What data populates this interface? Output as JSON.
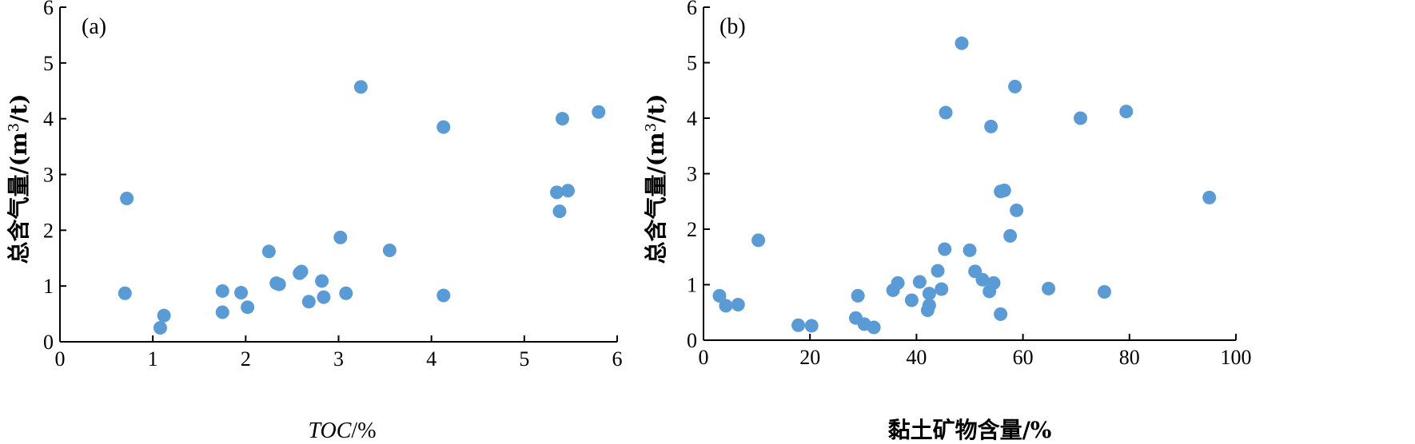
{
  "colors": {
    "point": "#5b9bd5"
  },
  "chart_data": [
    {
      "type": "scatter",
      "panel_label": "(a)",
      "xlabel_italic": "TOC",
      "xlabel_suffix": "/%",
      "ylabel_main": "总含气量/(m",
      "ylabel_sup": "3",
      "ylabel_end": "/t)",
      "xlim": [
        0,
        6
      ],
      "ylim": [
        0,
        6
      ],
      "xticks": [
        0,
        1,
        2,
        3,
        4,
        5,
        6
      ],
      "yticks": [
        0,
        1,
        2,
        3,
        4,
        5,
        6
      ],
      "points": [
        [
          0.72,
          2.57
        ],
        [
          0.7,
          0.87
        ],
        [
          1.08,
          0.25
        ],
        [
          1.12,
          0.47
        ],
        [
          1.75,
          0.91
        ],
        [
          1.75,
          0.53
        ],
        [
          1.95,
          0.88
        ],
        [
          2.02,
          0.62
        ],
        [
          2.25,
          1.62
        ],
        [
          2.33,
          1.05
        ],
        [
          2.36,
          1.03
        ],
        [
          2.58,
          1.23
        ],
        [
          2.6,
          1.26
        ],
        [
          2.68,
          0.72
        ],
        [
          2.82,
          1.09
        ],
        [
          2.84,
          0.8
        ],
        [
          3.02,
          1.87
        ],
        [
          3.08,
          0.87
        ],
        [
          3.24,
          4.57
        ],
        [
          3.55,
          1.64
        ],
        [
          4.13,
          3.85
        ],
        [
          4.13,
          0.83
        ],
        [
          5.35,
          2.68
        ],
        [
          5.38,
          2.34
        ],
        [
          5.41,
          4.0
        ],
        [
          5.47,
          2.71
        ],
        [
          5.8,
          4.12
        ]
      ]
    },
    {
      "type": "scatter",
      "panel_label": "(b)",
      "xlabel_plain": "黏土矿物含量/%",
      "ylabel_main": "总含气量/(m",
      "ylabel_sup": "3",
      "ylabel_end": "/t)",
      "xlim": [
        0,
        100
      ],
      "ylim": [
        0,
        6
      ],
      "xticks": [
        0,
        20,
        40,
        60,
        80,
        100
      ],
      "yticks": [
        0,
        1,
        2,
        3,
        4,
        5,
        6
      ],
      "points": [
        [
          3.0,
          0.8
        ],
        [
          4.2,
          0.62
        ],
        [
          6.5,
          0.64
        ],
        [
          10.3,
          1.8
        ],
        [
          17.8,
          0.27
        ],
        [
          20.3,
          0.26
        ],
        [
          28.6,
          0.4
        ],
        [
          29.0,
          0.8
        ],
        [
          30.2,
          0.29
        ],
        [
          32.0,
          0.23
        ],
        [
          35.6,
          0.9
        ],
        [
          36.5,
          1.03
        ],
        [
          39.1,
          0.72
        ],
        [
          40.6,
          1.05
        ],
        [
          42.1,
          0.54
        ],
        [
          42.4,
          0.63
        ],
        [
          42.4,
          0.84
        ],
        [
          44.0,
          1.25
        ],
        [
          44.7,
          0.92
        ],
        [
          45.3,
          1.64
        ],
        [
          45.5,
          4.1
        ],
        [
          48.5,
          5.35
        ],
        [
          50.0,
          1.62
        ],
        [
          51.0,
          1.24
        ],
        [
          52.4,
          1.09
        ],
        [
          53.7,
          0.88
        ],
        [
          54.0,
          3.85
        ],
        [
          54.5,
          1.03
        ],
        [
          55.8,
          0.47
        ],
        [
          55.8,
          2.68
        ],
        [
          56.5,
          2.7
        ],
        [
          57.6,
          1.88
        ],
        [
          58.5,
          4.57
        ],
        [
          58.8,
          2.34
        ],
        [
          64.8,
          0.93
        ],
        [
          70.8,
          4.0
        ],
        [
          75.3,
          0.87
        ],
        [
          79.4,
          4.12
        ],
        [
          95.0,
          2.57
        ]
      ]
    }
  ]
}
